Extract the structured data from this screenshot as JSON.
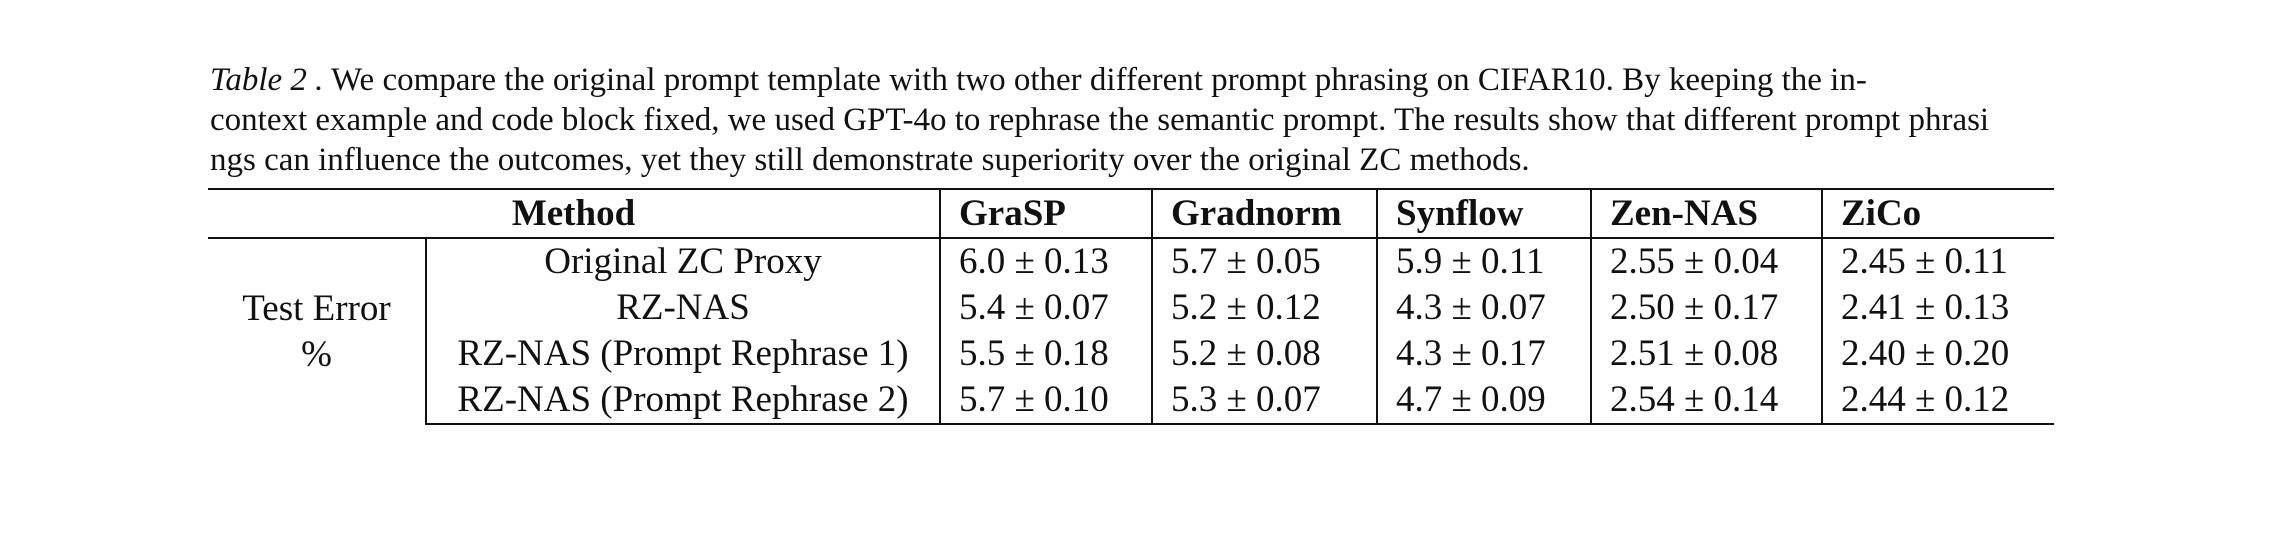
{
  "caption": {
    "label": "Table 2 .",
    "lines": [
      " We compare the original prompt template with two other different prompt phrasing on CIFAR10. By keeping the in-",
      "context example and code block fixed, we used GPT-4o to rephrase the semantic prompt. The results show that different prompt phrasi",
      "ngs can influence the outcomes, yet they still demonstrate superiority over the original ZC methods."
    ]
  },
  "table": {
    "method_header": "Method",
    "columns": [
      "GraSP",
      "Gradnorm",
      "Synflow",
      "Zen-NAS",
      "ZiCo"
    ],
    "row_group_label": [
      "Test Error",
      "%"
    ],
    "rows": [
      {
        "method": "Original ZC Proxy",
        "cells": [
          {
            "text": "6.0 ± 0.13",
            "bold": false
          },
          {
            "text": "5.7 ± 0.05",
            "bold": false
          },
          {
            "text": "5.9 ± 0.11",
            "bold": false
          },
          {
            "text": "2.55 ± 0.04",
            "bold": false
          },
          {
            "text": "2.45 ± 0.11",
            "bold": false
          }
        ]
      },
      {
        "method": "RZ-NAS",
        "cells": [
          {
            "text": "5.4 ± 0.07",
            "bold": true
          },
          {
            "text": "5.2 ± 0.12",
            "bold": true
          },
          {
            "text": "4.3 ± 0.07",
            "bold": true
          },
          {
            "text": "2.50 ± 0.17",
            "bold": true
          },
          {
            "text": "2.41 ± 0.13",
            "bold": false
          }
        ]
      },
      {
        "method": "RZ-NAS (Prompt Rephrase 1)",
        "cells": [
          {
            "text": "5.5 ± 0.18",
            "bold": false
          },
          {
            "text": "5.2 ± 0.08",
            "bold": true
          },
          {
            "text": "4.3 ± 0.17",
            "bold": true
          },
          {
            "text": "2.51 ± 0.08",
            "bold": false
          },
          {
            "text": "2.40 ± 0.20",
            "bold": true
          }
        ]
      },
      {
        "method": "RZ-NAS (Prompt Rephrase 2)",
        "cells": [
          {
            "text": "5.7 ± 0.10",
            "bold": false
          },
          {
            "text": "5.3 ± 0.07",
            "bold": false
          },
          {
            "text": "4.7 ± 0.09",
            "bold": false
          },
          {
            "text": "2.54 ± 0.14",
            "bold": false
          },
          {
            "text": "2.44 ± 0.12",
            "bold": false
          }
        ]
      }
    ]
  }
}
